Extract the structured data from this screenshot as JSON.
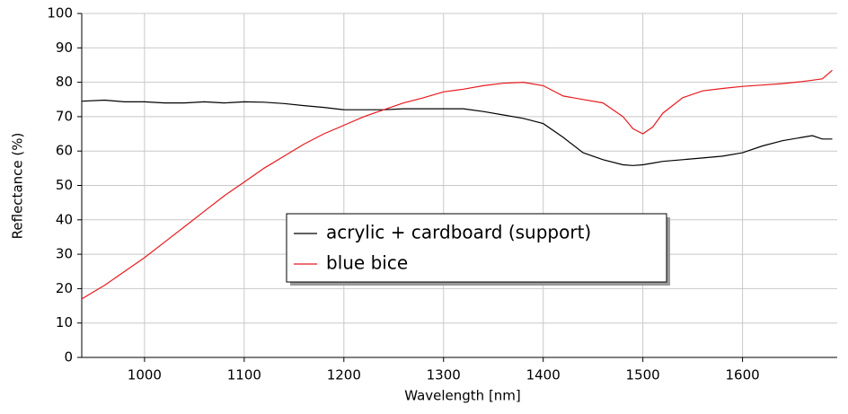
{
  "chart_data": {
    "type": "line",
    "xlabel": "Wavelength [nm]",
    "ylabel": "Reflectance (%)",
    "x": [
      937,
      960,
      980,
      1000,
      1020,
      1040,
      1060,
      1080,
      1100,
      1120,
      1140,
      1160,
      1180,
      1200,
      1220,
      1240,
      1260,
      1280,
      1300,
      1320,
      1340,
      1360,
      1380,
      1400,
      1420,
      1440,
      1460,
      1480,
      1490,
      1500,
      1510,
      1520,
      1540,
      1560,
      1580,
      1600,
      1620,
      1640,
      1660,
      1670,
      1680,
      1690
    ],
    "series": [
      {
        "name": "acrylic + cardboard (support)",
        "color": "#000000",
        "values": [
          74.5,
          74.8,
          74.3,
          74.3,
          74.0,
          74.0,
          74.3,
          74.0,
          74.3,
          74.2,
          73.8,
          73.2,
          72.7,
          72.0,
          72.0,
          72.0,
          72.3,
          72.3,
          72.3,
          72.3,
          71.5,
          70.5,
          69.5,
          68.0,
          64.0,
          59.5,
          57.5,
          56.0,
          55.8,
          56.0,
          56.5,
          57.0,
          57.5,
          58.0,
          58.5,
          59.5,
          61.5,
          63.0,
          64.0,
          64.5,
          63.5,
          63.5
        ]
      },
      {
        "name": "blue bice",
        "color": "#e8191e",
        "values": [
          17,
          21,
          25,
          29,
          33.5,
          38,
          42.5,
          47,
          51,
          55,
          58.5,
          62,
          65,
          67.5,
          70,
          72,
          74,
          75.5,
          77.2,
          78,
          79,
          79.7,
          80,
          79,
          76,
          75,
          74,
          70,
          66.5,
          65,
          67,
          71,
          75.5,
          77.5,
          78.2,
          78.8,
          79.2,
          79.6,
          80.2,
          80.6,
          81,
          83.5
        ]
      }
    ],
    "xlim": [
      937,
      1695
    ],
    "xticks": [
      1000,
      1100,
      1200,
      1300,
      1400,
      1500,
      1600
    ],
    "ylim": [
      0,
      100
    ],
    "yticks": [
      0,
      10,
      20,
      30,
      40,
      50,
      60,
      70,
      80,
      90,
      100
    ],
    "grid": true,
    "legend": "center"
  }
}
